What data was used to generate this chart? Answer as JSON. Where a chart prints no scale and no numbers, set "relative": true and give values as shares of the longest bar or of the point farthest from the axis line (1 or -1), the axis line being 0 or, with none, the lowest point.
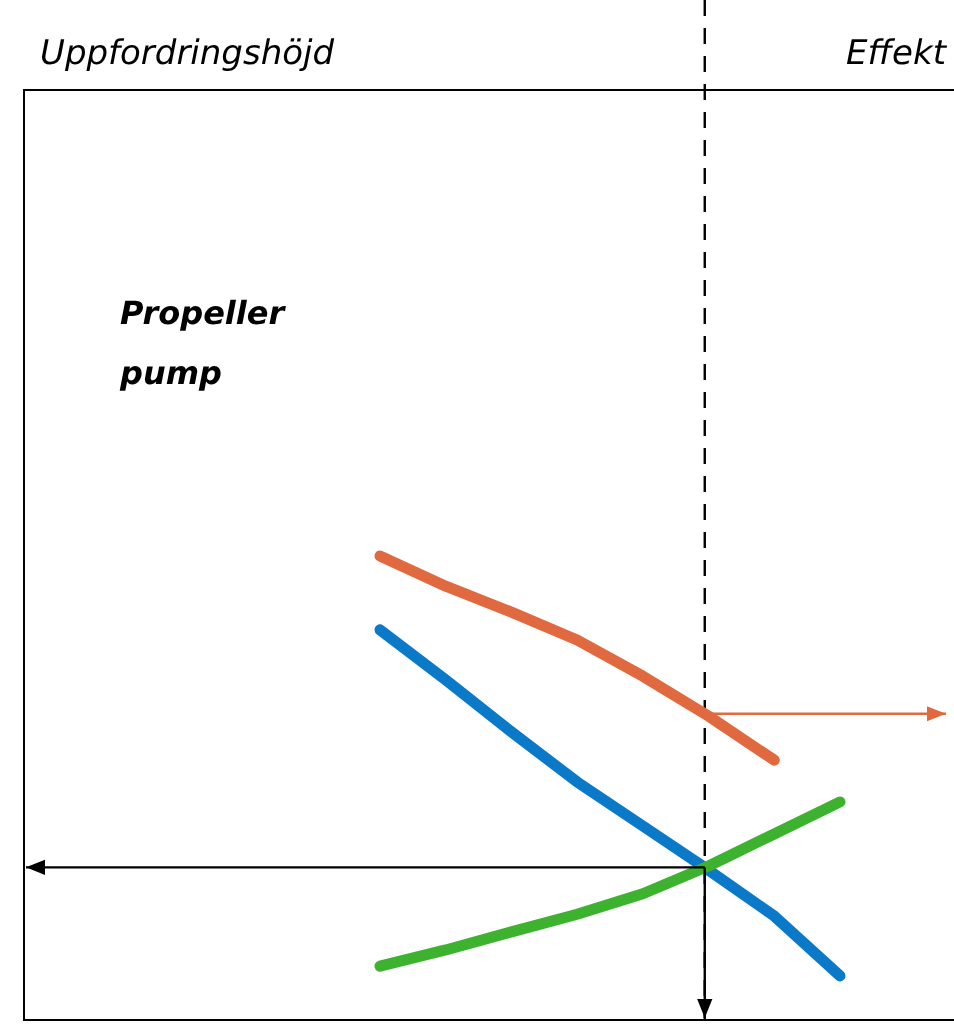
{
  "chart_data": {
    "type": "line",
    "relative": true,
    "annotations": [
      "Uppfordringshöjd",
      "Effekt",
      "Propeller\npump"
    ],
    "ref_lines": [
      {
        "axis": "y",
        "value": 0.329,
        "color": "#000000"
      }
    ],
    "categories": [
      null,
      null,
      null,
      null,
      null,
      null,
      null,
      null
    ],
    "line_style": "solid",
    "series": [
      {
        "color": "#e0693f",
        "values": [
          1,
          0.935,
          0.879,
          0.819,
          0.741,
          0.655,
          0.56,
          null
        ]
      },
      {
        "color": "#0a79c8",
        "values": [
          0.841,
          0.733,
          0.621,
          0.513,
          0.418,
          0.323,
          0.224,
          0.095
        ]
      },
      {
        "color": "#3cb22e",
        "values": [
          0.116,
          0.151,
          0.19,
          0.228,
          0.272,
          0.332,
          0.401,
          0.47
        ]
      }
    ]
  }
}
